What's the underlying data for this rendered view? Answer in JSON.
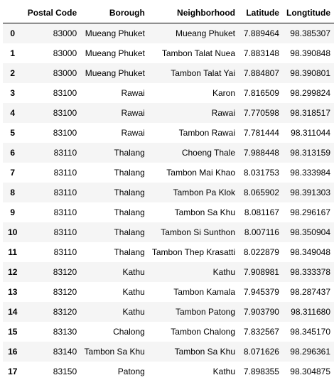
{
  "table": {
    "columns": [
      "",
      "Postal Code",
      "Borough",
      "Neighborhood",
      "Latitude",
      "Longtitude"
    ],
    "rows": [
      {
        "index": "0",
        "postal": "83000",
        "borough": "Mueang Phuket",
        "neighborhood": "Mueang Phuket",
        "lat": "7.889464",
        "lon": "98.385307"
      },
      {
        "index": "1",
        "postal": "83000",
        "borough": "Mueang Phuket",
        "neighborhood": "Tambon Talat Nuea",
        "lat": "7.883148",
        "lon": "98.390848"
      },
      {
        "index": "2",
        "postal": "83000",
        "borough": "Mueang Phuket",
        "neighborhood": "Tambon Talat Yai",
        "lat": "7.884807",
        "lon": "98.390801"
      },
      {
        "index": "3",
        "postal": "83100",
        "borough": "Rawai",
        "neighborhood": "Karon",
        "lat": "7.816509",
        "lon": "98.299824"
      },
      {
        "index": "4",
        "postal": "83100",
        "borough": "Rawai",
        "neighborhood": "Rawai",
        "lat": "7.770598",
        "lon": "98.318517"
      },
      {
        "index": "5",
        "postal": "83100",
        "borough": "Rawai",
        "neighborhood": "Tambon Rawai",
        "lat": "7.781444",
        "lon": "98.311044"
      },
      {
        "index": "6",
        "postal": "83110",
        "borough": "Thalang",
        "neighborhood": "Choeng Thale",
        "lat": "7.988448",
        "lon": "98.313159"
      },
      {
        "index": "7",
        "postal": "83110",
        "borough": "Thalang",
        "neighborhood": "Tambon Mai Khao",
        "lat": "8.031753",
        "lon": "98.333984"
      },
      {
        "index": "8",
        "postal": "83110",
        "borough": "Thalang",
        "neighborhood": "Tambon Pa Klok",
        "lat": "8.065902",
        "lon": "98.391303"
      },
      {
        "index": "9",
        "postal": "83110",
        "borough": "Thalang",
        "neighborhood": "Tambon Sa Khu",
        "lat": "8.081167",
        "lon": "98.296167"
      },
      {
        "index": "10",
        "postal": "83110",
        "borough": "Thalang",
        "neighborhood": "Tambon Si Sunthon",
        "lat": "8.007116",
        "lon": "98.350904"
      },
      {
        "index": "11",
        "postal": "83110",
        "borough": "Thalang",
        "neighborhood": "Tambon Thep Krasatti",
        "lat": "8.022879",
        "lon": "98.349048"
      },
      {
        "index": "12",
        "postal": "83120",
        "borough": "Kathu",
        "neighborhood": "Kathu",
        "lat": "7.908981",
        "lon": "98.333378"
      },
      {
        "index": "13",
        "postal": "83120",
        "borough": "Kathu",
        "neighborhood": "Tambon Kamala",
        "lat": "7.945379",
        "lon": "98.287437"
      },
      {
        "index": "14",
        "postal": "83120",
        "borough": "Kathu",
        "neighborhood": "Tambon Patong",
        "lat": "7.903790",
        "lon": "98.311680"
      },
      {
        "index": "15",
        "postal": "83130",
        "borough": "Chalong",
        "neighborhood": "Tambon Chalong",
        "lat": "7.832567",
        "lon": "98.345170"
      },
      {
        "index": "16",
        "postal": "83140",
        "borough": "Tambon Sa Khu",
        "neighborhood": "Tambon Sa Khu",
        "lat": "8.071626",
        "lon": "98.296361"
      },
      {
        "index": "17",
        "postal": "83150",
        "borough": "Patong",
        "neighborhood": "Kathu",
        "lat": "7.898355",
        "lon": "98.304875"
      }
    ]
  },
  "colors": {
    "stripe": "#f5f5f5",
    "background": "#ffffff",
    "text": "#000000"
  }
}
